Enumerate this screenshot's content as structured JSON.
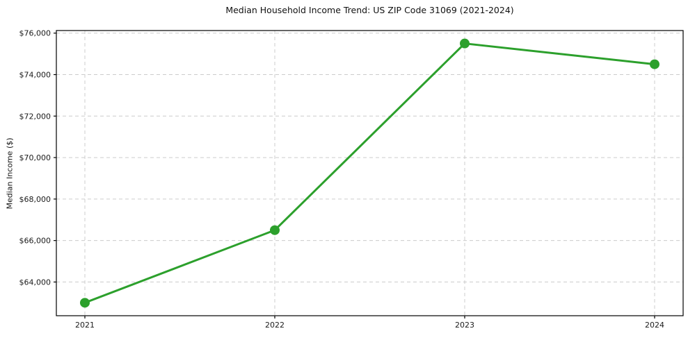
{
  "chart_data": {
    "type": "line",
    "title": "Median Household Income Trend: US ZIP Code 31069 (2021-2024)",
    "xlabel": "",
    "ylabel": "Median Income ($)",
    "x": [
      2021,
      2022,
      2023,
      2024
    ],
    "x_tick_labels": [
      "2021",
      "2022",
      "2023",
      "2024"
    ],
    "series": [
      {
        "name": "Median Household Income",
        "values": [
          63000,
          66500,
          75500,
          74500
        ]
      }
    ],
    "y_ticks": [
      64000,
      66000,
      68000,
      70000,
      72000,
      74000,
      76000
    ],
    "y_tick_labels": [
      "$64,000",
      "$66,000",
      "$68,000",
      "$70,000",
      "$72,000",
      "$74,000",
      "$76,000"
    ],
    "ylim": [
      62375,
      76125
    ],
    "grid": true,
    "grid_style": "dashed",
    "legend": "none",
    "colors": {
      "line": "#2ca02c",
      "marker": "#2ca02c",
      "grid": "#cccccc",
      "axis": "#000000",
      "text": "#1a1a1a"
    }
  }
}
